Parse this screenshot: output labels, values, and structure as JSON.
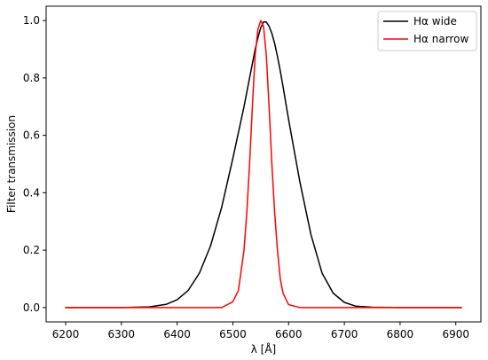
{
  "chart_data": {
    "type": "line",
    "title": "",
    "xlabel": "λ [Å]",
    "ylabel": "Filter transmission",
    "xlim": [
      6165,
      6945
    ],
    "ylim": [
      -0.05,
      1.05
    ],
    "xticks": [
      "6200",
      "6300",
      "6400",
      "6500",
      "6600",
      "6700",
      "6800",
      "6900"
    ],
    "yticks": [
      "0.0",
      "0.2",
      "0.4",
      "0.6",
      "0.8",
      "1.0"
    ],
    "grid": false,
    "legend_position": "top-right",
    "x": [
      6200,
      6250,
      6300,
      6350,
      6380,
      6400,
      6420,
      6440,
      6460,
      6480,
      6500,
      6510,
      6520,
      6525,
      6530,
      6535,
      6540,
      6545,
      6550,
      6555,
      6560,
      6565,
      6570,
      6575,
      6580,
      6585,
      6590,
      6600,
      6620,
      6640,
      6660,
      6680,
      6700,
      6720,
      6750,
      6800,
      6850,
      6910
    ],
    "series": [
      {
        "name": "Hα wide",
        "color": "#000000",
        "values": [
          0.0,
          0.0,
          0.0,
          0.002,
          0.011,
          0.027,
          0.06,
          0.12,
          0.215,
          0.35,
          0.52,
          0.61,
          0.7,
          0.75,
          0.8,
          0.85,
          0.9,
          0.94,
          0.975,
          0.995,
          0.995,
          0.98,
          0.955,
          0.92,
          0.875,
          0.825,
          0.77,
          0.655,
          0.44,
          0.255,
          0.12,
          0.05,
          0.018,
          0.005,
          0.001,
          0.0,
          0.0,
          0.0
        ]
      },
      {
        "name": "Hα narrow",
        "color": "#ff0000",
        "values": [
          0.0,
          0.0,
          0.0,
          0.0,
          0.0,
          0.0,
          0.0,
          0.0,
          0.0,
          0.0,
          0.02,
          0.06,
          0.2,
          0.33,
          0.5,
          0.7,
          0.88,
          0.97,
          1.0,
          0.98,
          0.88,
          0.7,
          0.5,
          0.33,
          0.2,
          0.1,
          0.05,
          0.01,
          0.0,
          0.0,
          0.0,
          0.0,
          0.0,
          0.0,
          0.0,
          0.0,
          0.0,
          0.0
        ]
      }
    ]
  }
}
